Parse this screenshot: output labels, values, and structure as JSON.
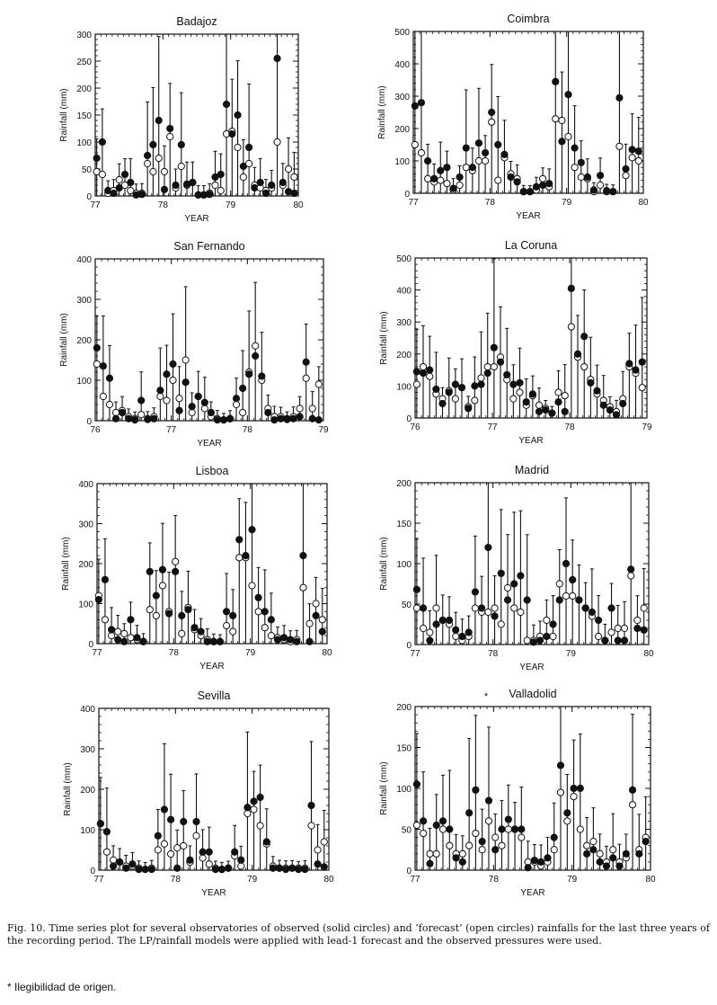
{
  "caption": "Fig. 10. Time series plot for several observatories of observed (solid circles) and ‘forecast’ (open circles) rainfalls for the last three years of the recording period. The LP/rainfall models were applied with lead-1 forecast and the observed pressures were used.",
  "footnote": "* Ilegibilidad de origen.",
  "chart_data": [
    {
      "type": "scatter",
      "title": "Badajoz",
      "xlabel": "YEAR",
      "ylabel": "Rainfall (mm)",
      "xlim": [
        77,
        80
      ],
      "ylim": [
        0,
        300
      ],
      "xticks": [
        "77",
        "78",
        "79",
        "80"
      ],
      "yticks": [
        "0",
        "50",
        "100",
        "150",
        "200",
        "250",
        "300"
      ],
      "months": [
        77.0,
        77.083,
        77.167,
        77.25,
        77.333,
        77.417,
        77.5,
        77.583,
        77.667,
        77.75,
        77.833,
        77.917,
        78.0,
        78.083,
        78.167,
        78.25,
        78.333,
        78.417,
        78.5,
        78.583,
        78.667,
        78.75,
        78.833,
        78.917,
        79.0,
        79.083,
        79.167,
        79.25,
        79.333,
        79.417,
        79.5,
        79.583,
        79.667,
        79.75,
        79.833,
        79.917
      ],
      "series": [
        {
          "name": "observed",
          "values": [
            70,
            100,
            10,
            5,
            15,
            40,
            25,
            2,
            3,
            75,
            95,
            140,
            12,
            125,
            20,
            95,
            22,
            25,
            2,
            2,
            3,
            35,
            40,
            170,
            115,
            150,
            55,
            90,
            15,
            25,
            5,
            20,
            255,
            25,
            8,
            5
          ]
        },
        {
          "name": "forecast",
          "values": [
            45,
            40,
            5,
            10,
            30,
            20,
            10,
            5,
            5,
            60,
            45,
            70,
            45,
            110,
            15,
            55,
            20,
            25,
            2,
            2,
            5,
            20,
            10,
            115,
            120,
            90,
            35,
            60,
            20,
            15,
            10,
            15,
            100,
            20,
            50,
            35
          ]
        }
      ]
    },
    {
      "type": "scatter",
      "title": "Coimbra",
      "xlabel": "YEAR",
      "ylabel": "Rainfall (mm)",
      "xlim": [
        77,
        80
      ],
      "ylim": [
        0,
        500
      ],
      "xticks": [
        "77",
        "78",
        "79",
        "80"
      ],
      "yticks": [
        "0",
        "100",
        "200",
        "300",
        "400",
        "500"
      ],
      "months": [
        77.0,
        77.083,
        77.167,
        77.25,
        77.333,
        77.417,
        77.5,
        77.583,
        77.667,
        77.75,
        77.833,
        77.917,
        78.0,
        78.083,
        78.167,
        78.25,
        78.333,
        78.417,
        78.5,
        78.583,
        78.667,
        78.75,
        78.833,
        78.917,
        79.0,
        79.083,
        79.167,
        79.25,
        79.333,
        79.417,
        79.5,
        79.583,
        79.667,
        79.75,
        79.833,
        79.917
      ],
      "series": [
        {
          "name": "observed",
          "values": [
            270,
            280,
            100,
            45,
            70,
            80,
            15,
            50,
            140,
            80,
            155,
            125,
            250,
            150,
            120,
            50,
            35,
            5,
            5,
            20,
            25,
            30,
            345,
            160,
            305,
            140,
            95,
            50,
            10,
            55,
            8,
            5,
            295,
            75,
            135,
            130
          ]
        },
        {
          "name": "forecast",
          "values": [
            150,
            125,
            45,
            35,
            40,
            30,
            10,
            25,
            80,
            70,
            100,
            100,
            220,
            40,
            110,
            60,
            45,
            5,
            5,
            10,
            45,
            20,
            230,
            225,
            175,
            80,
            50,
            45,
            5,
            25,
            5,
            5,
            145,
            55,
            110,
            100
          ]
        }
      ]
    },
    {
      "type": "scatter",
      "title": "San Fernando",
      "xlabel": "YEAR",
      "ylabel": "Rainfall (mm)",
      "xlim": [
        76,
        79
      ],
      "ylim": [
        0,
        400
      ],
      "xticks": [
        "76",
        "77",
        "78",
        "79"
      ],
      "yticks": [
        "0",
        "100",
        "200",
        "300",
        "400"
      ],
      "months": [
        76.0,
        76.083,
        76.167,
        76.25,
        76.333,
        76.417,
        76.5,
        76.583,
        76.667,
        76.75,
        76.833,
        76.917,
        77.0,
        77.083,
        77.167,
        77.25,
        77.333,
        77.417,
        77.5,
        77.583,
        77.667,
        77.75,
        77.833,
        77.917,
        78.0,
        78.083,
        78.167,
        78.25,
        78.333,
        78.417,
        78.5,
        78.583,
        78.667,
        78.75,
        78.833,
        78.917
      ],
      "series": [
        {
          "name": "observed",
          "values": [
            180,
            135,
            105,
            5,
            20,
            5,
            2,
            50,
            3,
            5,
            75,
            115,
            140,
            25,
            95,
            35,
            60,
            45,
            20,
            2,
            2,
            5,
            55,
            80,
            115,
            160,
            110,
            20,
            2,
            5,
            3,
            5,
            10,
            145,
            5,
            2
          ]
        },
        {
          "name": "forecast",
          "values": [
            140,
            60,
            40,
            20,
            25,
            10,
            5,
            15,
            5,
            10,
            60,
            50,
            100,
            55,
            150,
            20,
            60,
            30,
            10,
            5,
            2,
            5,
            40,
            20,
            120,
            185,
            100,
            30,
            10,
            10,
            5,
            10,
            30,
            105,
            30,
            90
          ]
        }
      ]
    },
    {
      "type": "scatter",
      "title": "La Coruna",
      "xlabel": "YEAR",
      "ylabel": "Rainfall (mm)",
      "xlim": [
        76,
        79
      ],
      "ylim": [
        0,
        500
      ],
      "xticks": [
        "76",
        "77",
        "78",
        "79"
      ],
      "yticks": [
        "0",
        "100",
        "200",
        "300",
        "400",
        "500"
      ],
      "months": [
        76.0,
        76.083,
        76.167,
        76.25,
        76.333,
        76.417,
        76.5,
        76.583,
        76.667,
        76.75,
        76.833,
        76.917,
        77.0,
        77.083,
        77.167,
        77.25,
        77.333,
        77.417,
        77.5,
        77.583,
        77.667,
        77.75,
        77.833,
        77.917,
        78.0,
        78.083,
        78.167,
        78.25,
        78.333,
        78.417,
        78.5,
        78.583,
        78.667,
        78.75,
        78.833,
        78.917
      ],
      "series": [
        {
          "name": "observed",
          "values": [
            145,
            140,
            150,
            90,
            45,
            80,
            105,
            95,
            30,
            100,
            105,
            140,
            220,
            175,
            135,
            105,
            110,
            50,
            75,
            20,
            25,
            15,
            50,
            20,
            405,
            200,
            255,
            110,
            85,
            40,
            25,
            10,
            45,
            170,
            150,
            175
          ]
        },
        {
          "name": "forecast",
          "values": [
            105,
            160,
            130,
            75,
            60,
            85,
            60,
            95,
            35,
            55,
            125,
            160,
            160,
            190,
            120,
            60,
            80,
            40,
            70,
            40,
            30,
            15,
            80,
            70,
            285,
            190,
            160,
            120,
            75,
            55,
            35,
            20,
            60,
            160,
            140,
            95
          ]
        }
      ]
    },
    {
      "type": "scatter",
      "title": "Lisboa",
      "xlabel": "YEAR",
      "ylabel": "Rainfall (mm)",
      "xlim": [
        77,
        80
      ],
      "ylim": [
        0,
        400
      ],
      "xticks": [
        "77",
        "78",
        "79",
        "80"
      ],
      "yticks": [
        "0",
        "100",
        "200",
        "300",
        "400"
      ],
      "months": [
        77.0,
        77.083,
        77.167,
        77.25,
        77.333,
        77.417,
        77.5,
        77.583,
        77.667,
        77.75,
        77.833,
        77.917,
        78.0,
        78.083,
        78.167,
        78.25,
        78.333,
        78.417,
        78.5,
        78.583,
        78.667,
        78.75,
        78.833,
        78.917,
        79.0,
        79.083,
        79.167,
        79.25,
        79.333,
        79.417,
        79.5,
        79.583,
        79.667,
        79.75,
        79.833,
        79.917
      ],
      "series": [
        {
          "name": "observed",
          "values": [
            110,
            160,
            35,
            10,
            5,
            60,
            15,
            5,
            180,
            120,
            185,
            75,
            180,
            70,
            85,
            40,
            30,
            5,
            5,
            5,
            80,
            70,
            260,
            220,
            285,
            115,
            80,
            60,
            10,
            15,
            10,
            5,
            220,
            5,
            70,
            30
          ]
        },
        {
          "name": "forecast",
          "values": [
            120,
            60,
            20,
            30,
            25,
            15,
            10,
            5,
            85,
            70,
            145,
            80,
            205,
            25,
            90,
            35,
            20,
            10,
            5,
            5,
            45,
            30,
            215,
            215,
            145,
            80,
            40,
            20,
            15,
            10,
            5,
            10,
            140,
            50,
            100,
            60
          ]
        }
      ]
    },
    {
      "type": "scatter",
      "title": "Madrid",
      "xlabel": "YEAR",
      "ylabel": "Rainfall (mm)",
      "xlim": [
        77,
        80
      ],
      "ylim": [
        0,
        200
      ],
      "xticks": [
        "77",
        "78",
        "79",
        "80"
      ],
      "yticks": [
        "0",
        "50",
        "100",
        "150",
        "200"
      ],
      "months": [
        77.0,
        77.083,
        77.167,
        77.25,
        77.333,
        77.417,
        77.5,
        77.583,
        77.667,
        77.75,
        77.833,
        77.917,
        78.0,
        78.083,
        78.167,
        78.25,
        78.333,
        78.417,
        78.5,
        78.583,
        78.667,
        78.75,
        78.833,
        78.917,
        79.0,
        79.083,
        79.167,
        79.25,
        79.333,
        79.417,
        79.5,
        79.583,
        79.667,
        79.75,
        79.833,
        79.917
      ],
      "series": [
        {
          "name": "observed",
          "values": [
            68,
            45,
            5,
            25,
            30,
            30,
            18,
            10,
            15,
            65,
            45,
            120,
            35,
            88,
            55,
            75,
            85,
            55,
            3,
            5,
            10,
            25,
            55,
            100,
            80,
            55,
            45,
            40,
            30,
            5,
            45,
            5,
            5,
            93,
            20,
            18
          ]
        },
        {
          "name": "forecast",
          "values": [
            45,
            20,
            15,
            45,
            30,
            25,
            10,
            5,
            10,
            45,
            40,
            40,
            45,
            25,
            70,
            45,
            40,
            5,
            5,
            10,
            30,
            10,
            75,
            60,
            60,
            55,
            45,
            35,
            10,
            5,
            15,
            20,
            20,
            85,
            30,
            45
          ]
        }
      ]
    },
    {
      "type": "scatter",
      "title": "Sevilla",
      "xlabel": "YEAR",
      "ylabel": "Rainfall (mm)",
      "xlim": [
        77,
        80
      ],
      "ylim": [
        0,
        400
      ],
      "xticks": [
        "77",
        "78",
        "79",
        "80"
      ],
      "yticks": [
        "0",
        "100",
        "200",
        "300",
        "400"
      ],
      "months": [
        77.0,
        77.083,
        77.167,
        77.25,
        77.333,
        77.417,
        77.5,
        77.583,
        77.667,
        77.75,
        77.833,
        77.917,
        78.0,
        78.083,
        78.167,
        78.25,
        78.333,
        78.417,
        78.5,
        78.583,
        78.667,
        78.75,
        78.833,
        78.917,
        79.0,
        79.083,
        79.167,
        79.25,
        79.333,
        79.417,
        79.5,
        79.583,
        79.667,
        79.75,
        79.833,
        79.917
      ],
      "series": [
        {
          "name": "observed",
          "values": [
            115,
            95,
            10,
            20,
            5,
            15,
            2,
            2,
            2,
            85,
            150,
            125,
            5,
            120,
            25,
            120,
            45,
            45,
            2,
            2,
            5,
            45,
            25,
            155,
            170,
            180,
            70,
            5,
            5,
            2,
            5,
            2,
            2,
            160,
            15,
            8
          ]
        },
        {
          "name": "forecast",
          "values": [
            115,
            45,
            25,
            20,
            10,
            10,
            5,
            2,
            5,
            50,
            65,
            40,
            55,
            60,
            20,
            85,
            30,
            15,
            5,
            2,
            5,
            35,
            10,
            140,
            150,
            110,
            65,
            10,
            5,
            5,
            5,
            5,
            5,
            110,
            50,
            70
          ]
        }
      ]
    },
    {
      "type": "scatter",
      "title": "Valladolid",
      "title_marker": "*",
      "xlabel": "YEAR",
      "ylabel": "Rainfall (mm)",
      "xlim": [
        77,
        80
      ],
      "ylim": [
        0,
        200
      ],
      "xticks": [
        "77",
        "78",
        "79",
        "80"
      ],
      "yticks": [
        "0",
        "50",
        "100",
        "150",
        "200"
      ],
      "months": [
        77.0,
        77.083,
        77.167,
        77.25,
        77.333,
        77.417,
        77.5,
        77.583,
        77.667,
        77.75,
        77.833,
        77.917,
        78.0,
        78.083,
        78.167,
        78.25,
        78.333,
        78.417,
        78.5,
        78.583,
        78.667,
        78.75,
        78.833,
        78.917,
        79.0,
        79.083,
        79.167,
        79.25,
        79.333,
        79.417,
        79.5,
        79.583,
        79.667,
        79.75,
        79.833,
        79.917
      ],
      "series": [
        {
          "name": "observed",
          "values": [
            105,
            60,
            8,
            55,
            60,
            50,
            15,
            10,
            70,
            98,
            35,
            85,
            25,
            50,
            62,
            50,
            50,
            3,
            12,
            10,
            15,
            40,
            128,
            70,
            100,
            100,
            20,
            25,
            10,
            5,
            15,
            5,
            20,
            98,
            20,
            35
          ]
        },
        {
          "name": "forecast",
          "values": [
            55,
            45,
            20,
            20,
            50,
            30,
            20,
            20,
            30,
            45,
            25,
            60,
            40,
            30,
            50,
            50,
            40,
            10,
            10,
            5,
            10,
            25,
            95,
            60,
            90,
            50,
            30,
            35,
            20,
            10,
            25,
            10,
            15,
            80,
            25,
            40
          ]
        }
      ]
    }
  ]
}
